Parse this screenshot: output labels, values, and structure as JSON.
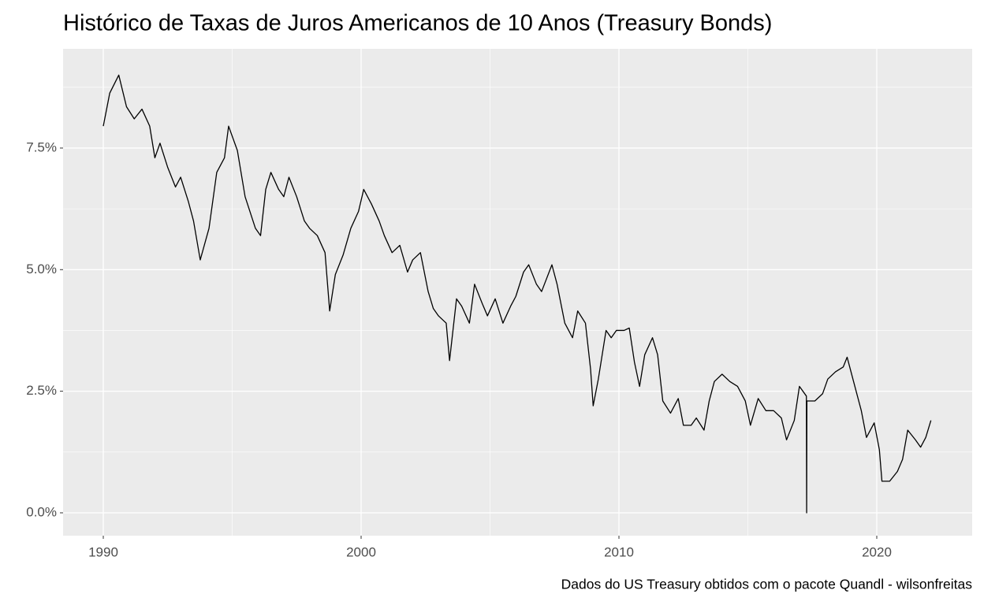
{
  "chart_data": {
    "type": "line",
    "title": "Histórico de Taxas de Juros Americanos de 10 Anos (Treasury Bonds)",
    "caption": "Dados do US Treasury obtidos com o pacote Quandl - wilsonfreitas",
    "x": [
      1990.0,
      1990.25,
      1990.6,
      1990.9,
      1991.2,
      1991.5,
      1991.8,
      1992.0,
      1992.2,
      1992.5,
      1992.8,
      1993.0,
      1993.3,
      1993.5,
      1993.76,
      1994.1,
      1994.4,
      1994.7,
      1994.86,
      1995.2,
      1995.5,
      1995.9,
      1996.1,
      1996.3,
      1996.5,
      1996.8,
      1997.0,
      1997.2,
      1997.5,
      1997.8,
      1998.0,
      1998.3,
      1998.6,
      1998.78,
      1999.0,
      1999.3,
      1999.6,
      1999.9,
      2000.1,
      2000.4,
      2000.7,
      2000.9,
      2001.2,
      2001.5,
      2001.8,
      2002.0,
      2002.3,
      2002.6,
      2002.8,
      2003.0,
      2003.3,
      2003.43,
      2003.7,
      2003.9,
      2004.2,
      2004.4,
      2004.7,
      2004.9,
      2005.2,
      2005.5,
      2005.8,
      2006.0,
      2006.3,
      2006.5,
      2006.8,
      2007.0,
      2007.4,
      2007.6,
      2007.9,
      2008.2,
      2008.4,
      2008.7,
      2008.9,
      2009.0,
      2009.2,
      2009.5,
      2009.7,
      2009.9,
      2010.2,
      2010.4,
      2010.6,
      2010.8,
      2011.0,
      2011.3,
      2011.5,
      2011.7,
      2012.0,
      2012.3,
      2012.5,
      2012.8,
      2013.0,
      2013.3,
      2013.5,
      2013.7,
      2014.0,
      2014.3,
      2014.6,
      2014.9,
      2015.1,
      2015.4,
      2015.7,
      2016.0,
      2016.3,
      2016.5,
      2016.8,
      2017.0,
      2017.27,
      2017.28,
      2017.29,
      2017.6,
      2017.9,
      2018.1,
      2018.4,
      2018.7,
      2018.85,
      2019.1,
      2019.4,
      2019.6,
      2019.9,
      2020.1,
      2020.2,
      2020.5,
      2020.8,
      2021.0,
      2021.2,
      2021.5,
      2021.7,
      2021.9,
      2022.1
    ],
    "series": [
      {
        "color": "#000000",
        "values": [
          7.95,
          8.63,
          9.0,
          8.35,
          8.1,
          8.3,
          7.95,
          7.3,
          7.6,
          7.1,
          6.7,
          6.9,
          6.4,
          6.0,
          5.2,
          5.85,
          7.0,
          7.3,
          7.95,
          7.45,
          6.5,
          5.85,
          5.7,
          6.65,
          7.0,
          6.65,
          6.5,
          6.9,
          6.5,
          6.0,
          5.85,
          5.7,
          5.35,
          4.15,
          4.9,
          5.3,
          5.85,
          6.2,
          6.65,
          6.35,
          6.0,
          5.7,
          5.35,
          5.5,
          4.95,
          5.2,
          5.35,
          4.55,
          4.2,
          4.05,
          3.9,
          3.13,
          4.4,
          4.25,
          3.9,
          4.7,
          4.3,
          4.05,
          4.4,
          3.9,
          4.25,
          4.45,
          4.95,
          5.1,
          4.7,
          4.55,
          5.1,
          4.7,
          3.9,
          3.6,
          4.15,
          3.9,
          2.95,
          2.2,
          2.75,
          3.75,
          3.6,
          3.75,
          3.75,
          3.8,
          3.1,
          2.6,
          3.25,
          3.6,
          3.25,
          2.3,
          2.05,
          2.35,
          1.8,
          1.8,
          1.95,
          1.7,
          2.3,
          2.7,
          2.85,
          2.7,
          2.6,
          2.3,
          1.8,
          2.35,
          2.1,
          2.1,
          1.95,
          1.5,
          1.9,
          2.6,
          2.4,
          0,
          2.3,
          2.3,
          2.45,
          2.75,
          2.9,
          3.0,
          3.2,
          2.7,
          2.1,
          1.55,
          1.85,
          1.3,
          0.65,
          0.65,
          0.85,
          1.1,
          1.7,
          1.5,
          1.35,
          1.55,
          1.9
        ]
      }
    ],
    "xlim": [
      1988.44,
      2023.7
    ],
    "xticks": [
      1990,
      2000,
      2010,
      2020
    ],
    "ylim": [
      -0.47,
      9.54
    ],
    "yticks": [
      {
        "value": 0,
        "label": "0.0%"
      },
      {
        "value": 2.5,
        "label": "2.5%"
      },
      {
        "value": 5,
        "label": "5.0%"
      },
      {
        "value": 7.5,
        "label": "7.5%"
      }
    ],
    "grid": true
  }
}
